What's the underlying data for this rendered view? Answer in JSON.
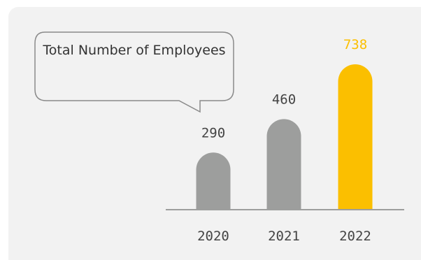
{
  "colors": {
    "background": "#f2f2f2",
    "bar_default": "#9d9e9d",
    "bar_highlight": "#fbbf00",
    "label_default": "#444444",
    "baseline": "#9d9e9d",
    "callout_border": "#8a8a8a"
  },
  "chart_data": {
    "type": "bar",
    "title": "Total Number of Employees",
    "categories": [
      "2020",
      "2021",
      "2022"
    ],
    "values": [
      290,
      460,
      738
    ],
    "highlight_category": "2022",
    "ylim": [
      0,
      738
    ],
    "grid": false,
    "legend": "none",
    "data_labels": true
  }
}
